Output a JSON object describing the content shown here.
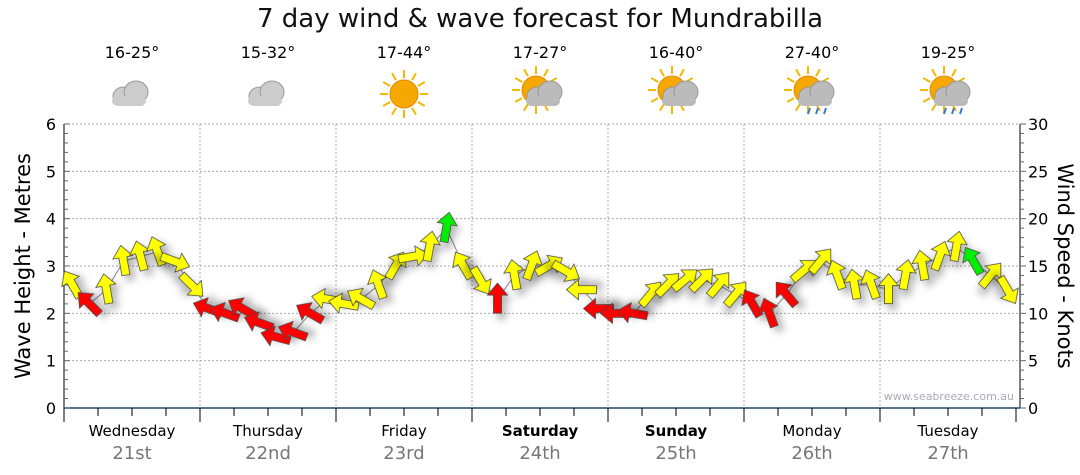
{
  "chart_data": {
    "type": "scatter",
    "title": "7 day wind & wave forecast for Mundrabilla",
    "ylabel": "Wave Height - Metres",
    "y2label": "Wind Speed - Knots",
    "ylim": [
      0,
      6
    ],
    "y2lim": [
      0,
      30
    ],
    "yticks": [
      "0",
      "1",
      "2",
      "3",
      "4",
      "5",
      "6"
    ],
    "y2ticks": [
      "0",
      "5",
      "10",
      "15",
      "20",
      "25",
      "30"
    ],
    "grid": true,
    "watermark": "www.seabreeze.com.au",
    "days": [
      {
        "name": "Wednesday",
        "date": "21st",
        "temp": "16-25°",
        "icon": "cloudy-icon",
        "bold": false
      },
      {
        "name": "Thursday",
        "date": "22nd",
        "temp": "15-32°",
        "icon": "cloudy-icon",
        "bold": false
      },
      {
        "name": "Friday",
        "date": "23rd",
        "temp": "17-44°",
        "icon": "sunny-icon",
        "bold": false
      },
      {
        "name": "Saturday",
        "date": "24th",
        "temp": "17-27°",
        "icon": "partly-cloudy-icon",
        "bold": true
      },
      {
        "name": "Sunday",
        "date": "25th",
        "temp": "16-40°",
        "icon": "partly-cloudy-icon",
        "bold": true
      },
      {
        "name": "Monday",
        "date": "26th",
        "temp": "27-40°",
        "icon": "shower-icon",
        "bold": false
      },
      {
        "name": "Tuesday",
        "date": "27th",
        "temp": "19-25°",
        "icon": "shower-icon",
        "bold": false
      }
    ],
    "hours_step": 3,
    "wave_height": [
      2.6,
      2.2,
      2.5,
      3.1,
      3.2,
      3.3,
      3.1,
      2.6,
      2.1,
      2.0,
      2.1,
      1.8,
      1.5,
      1.6,
      2.0,
      2.3,
      2.2,
      2.3,
      2.6,
      3.0,
      3.2,
      3.4,
      3.8,
      3.0,
      2.7,
      2.3,
      2.8,
      3.0,
      3.0,
      2.9,
      2.5,
      2.1,
      2.0,
      2.0,
      2.4,
      2.6,
      2.7,
      2.7,
      2.6,
      2.4,
      2.2,
      2.0,
      2.4,
      2.9,
      3.1,
      2.8,
      2.6,
      2.6,
      2.5,
      2.8,
      3.0,
      3.2,
      3.4,
      3.1,
      2.8,
      2.5
    ],
    "wind_direction_deg": [
      -30,
      -45,
      -10,
      -10,
      -15,
      -20,
      110,
      135,
      -70,
      -70,
      -60,
      -70,
      -75,
      -70,
      -60,
      -80,
      -80,
      -60,
      -20,
      30,
      80,
      10,
      10,
      -30,
      150,
      0,
      -10,
      20,
      60,
      120,
      -90,
      -90,
      -90,
      -80,
      40,
      45,
      50,
      45,
      40,
      40,
      -30,
      -20,
      -40,
      50,
      40,
      -20,
      -10,
      -20,
      0,
      10,
      -10,
      20,
      10,
      -30,
      40,
      150
    ],
    "wind_colour": [
      "yellow",
      "red",
      "yellow",
      "yellow",
      "yellow",
      "yellow",
      "yellow",
      "yellow",
      "red",
      "red",
      "red",
      "red",
      "red",
      "red",
      "red",
      "yellow",
      "yellow",
      "yellow",
      "yellow",
      "yellow",
      "yellow",
      "yellow",
      "green",
      "yellow",
      "yellow",
      "red",
      "yellow",
      "yellow",
      "yellow",
      "yellow",
      "yellow",
      "red",
      "red",
      "red",
      "yellow",
      "yellow",
      "yellow",
      "yellow",
      "yellow",
      "yellow",
      "red",
      "red",
      "red",
      "yellow",
      "yellow",
      "yellow",
      "yellow",
      "yellow",
      "yellow",
      "yellow",
      "yellow",
      "yellow",
      "yellow",
      "green",
      "yellow",
      "yellow"
    ],
    "colours": {
      "yellow": "#ffff00",
      "red": "#ff0000",
      "green": "#00ee00"
    }
  }
}
